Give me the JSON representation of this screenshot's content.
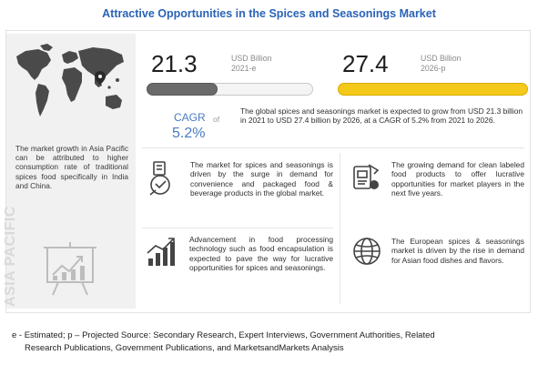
{
  "title": "Attractive Opportunities in the Spices and Seasonings Market",
  "left": {
    "region_vertical": "ASIA PACIFIC",
    "text": "The market growth in Asia Pacific can be attributed to higher consumption rate of traditional spices food specifically in India and China."
  },
  "metrics": {
    "start": {
      "value": "21.3",
      "unit": "USD Billion",
      "year": "2021-e"
    },
    "end": {
      "value": "27.4",
      "unit": "USD Billion",
      "year": "2026-p"
    },
    "cagr": {
      "label": "CAGR",
      "of": "of",
      "value": "5.2%"
    },
    "description": "The global spices and seasonings market is expected to grow from USD 21.3 billion in 2021 to USD 27.4 billion by 2026, at a CAGR of 5.2% from 2021 to 2026."
  },
  "cards": [
    {
      "icon": "processed-food-icon",
      "text": "The market for spices and seasonings is driven by the surge in demand for convenience and packaged food & beverage products in the global market."
    },
    {
      "icon": "clean-label-icon",
      "text": "The growing demand for clean labeled food products to offer lucrative opportunities for market players in the next five years."
    },
    {
      "icon": "growth-chart-icon",
      "text": "Advancement in food processing technology such as food encapsulation is expected to pave the way for lucrative opportunities for spices and seasonings."
    },
    {
      "icon": "globe-icon",
      "text": "The European spices & seasonings market is driven by the rise in demand for Asian food dishes and flavors."
    }
  ],
  "footer": {
    "line1": "e - Estimated; p – Projected Source: Secondary Research, Expert Interviews, Government Authorities, Related",
    "line2": "Research Publications, Government Publications, and MarketsandMarkets Analysis"
  },
  "colors": {
    "title": "#2a63b8",
    "accent_yellow": "#f5c91a",
    "bar_dark": "#6a6a6a",
    "cagr_blue": "#4a7bc0"
  }
}
